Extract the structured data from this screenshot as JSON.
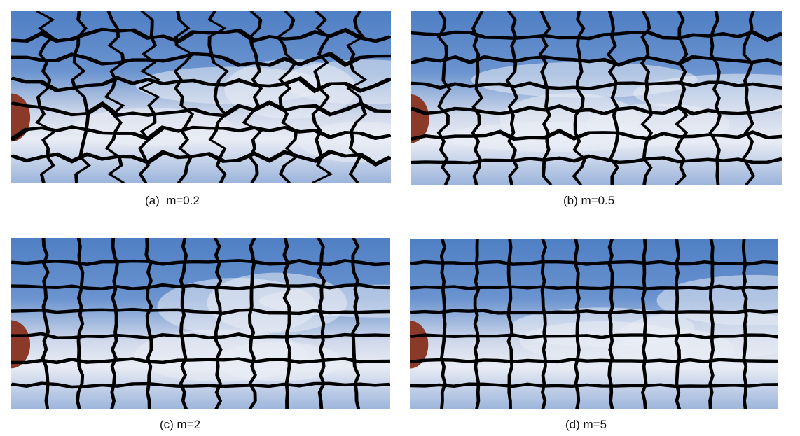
{
  "panels": [
    {
      "id": "a",
      "caption": "(a)  m=0.2",
      "m": 0.2
    },
    {
      "id": "b",
      "caption": "(b) m=0.5",
      "m": 0.5
    },
    {
      "id": "c",
      "caption": "(c) m=2",
      "m": 2
    },
    {
      "id": "d",
      "caption": "(d) m=5",
      "m": 5
    }
  ],
  "colors": {
    "sky_blue": "#5b87c9",
    "cloud_white": "#e9ecf4",
    "boundary_black": "#000000",
    "object_red": "#8b3a2a"
  }
}
